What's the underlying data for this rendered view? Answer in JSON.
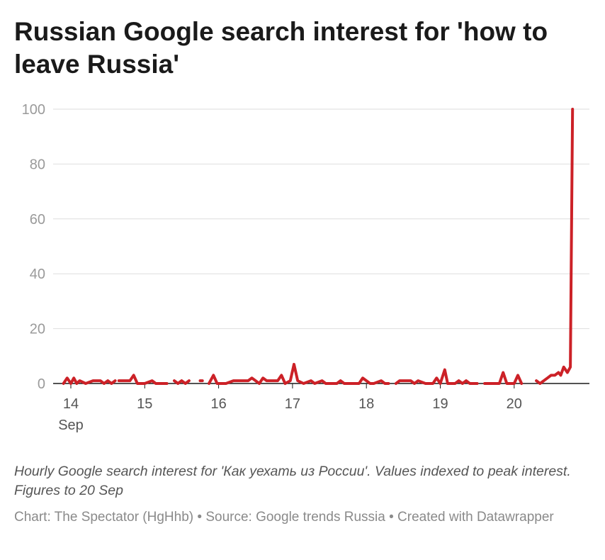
{
  "header": {
    "title": "Russian Google search interest for 'how to leave Russia'"
  },
  "footer": {
    "description": "Hourly Google search interest for 'Как уехать из России'. Values indexed to peak interest. Figures to 20 Sep",
    "credit_chart": "Chart: The Spectator (HgHhb)",
    "credit_source": "Source: Google trends Russia",
    "credit_tool": "Created with Datawrapper",
    "separator": " • "
  },
  "chart_data": {
    "type": "line",
    "title": "Russian Google search interest for 'how to leave Russia'",
    "xlabel": "",
    "ylabel": "",
    "ylim": [
      0,
      100
    ],
    "xlim": [
      14,
      20.85
    ],
    "y_ticks": [
      0,
      20,
      40,
      60,
      80,
      100
    ],
    "x_ticks": [
      {
        "value": 14,
        "label": "14",
        "sublabel": "Sep"
      },
      {
        "value": 15,
        "label": "15"
      },
      {
        "value": 16,
        "label": "16"
      },
      {
        "value": 17,
        "label": "17"
      },
      {
        "value": 18,
        "label": "18"
      },
      {
        "value": 19,
        "label": "19"
      },
      {
        "value": 20,
        "label": "20"
      }
    ],
    "grid": true,
    "color": "#cc2127",
    "series": [
      {
        "segments": [
          [
            [
              13.9,
              0
            ],
            [
              13.95,
              2
            ],
            [
              14.0,
              0
            ],
            [
              14.04,
              2
            ],
            [
              14.08,
              0
            ],
            [
              14.12,
              1
            ],
            [
              14.2,
              0
            ],
            [
              14.3,
              1
            ],
            [
              14.4,
              1
            ],
            [
              14.45,
              0
            ],
            [
              14.5,
              1
            ],
            [
              14.55,
              0
            ],
            [
              14.6,
              1
            ]
          ],
          [
            [
              14.65,
              1
            ],
            [
              14.8,
              1
            ],
            [
              14.85,
              3
            ],
            [
              14.9,
              0
            ],
            [
              15.0,
              0
            ],
            [
              15.1,
              1
            ],
            [
              15.15,
              0
            ],
            [
              15.3,
              0
            ]
          ],
          [
            [
              15.4,
              1
            ],
            [
              15.45,
              0
            ],
            [
              15.5,
              1
            ],
            [
              15.55,
              0
            ],
            [
              15.6,
              1
            ]
          ],
          [
            [
              15.75,
              1
            ],
            [
              15.78,
              1
            ]
          ],
          [
            [
              15.87,
              0
            ],
            [
              15.93,
              3
            ],
            [
              15.98,
              0
            ],
            [
              16.1,
              0
            ],
            [
              16.2,
              1
            ],
            [
              16.4,
              1
            ],
            [
              16.45,
              2
            ],
            [
              16.5,
              1
            ],
            [
              16.55,
              0
            ],
            [
              16.6,
              2
            ],
            [
              16.65,
              1
            ],
            [
              16.8,
              1
            ],
            [
              16.85,
              3
            ],
            [
              16.9,
              0
            ],
            [
              16.97,
              1
            ],
            [
              17.02,
              7
            ],
            [
              17.07,
              1
            ],
            [
              17.15,
              0
            ],
            [
              17.25,
              1
            ],
            [
              17.3,
              0
            ],
            [
              17.4,
              1
            ],
            [
              17.45,
              0
            ],
            [
              17.6,
              0
            ],
            [
              17.65,
              1
            ],
            [
              17.7,
              0
            ],
            [
              17.9,
              0
            ],
            [
              17.95,
              2
            ],
            [
              18.0,
              1
            ],
            [
              18.05,
              0
            ],
            [
              18.1,
              0
            ],
            [
              18.2,
              1
            ],
            [
              18.25,
              0
            ],
            [
              18.3,
              0
            ]
          ],
          [
            [
              18.4,
              0
            ],
            [
              18.45,
              1
            ],
            [
              18.6,
              1
            ],
            [
              18.65,
              0
            ],
            [
              18.7,
              1
            ],
            [
              18.8,
              0
            ],
            [
              18.9,
              0
            ],
            [
              18.95,
              2
            ],
            [
              19.0,
              0
            ],
            [
              19.06,
              5
            ],
            [
              19.1,
              0
            ],
            [
              19.2,
              0
            ],
            [
              19.25,
              1
            ],
            [
              19.3,
              0
            ],
            [
              19.35,
              1
            ],
            [
              19.4,
              0
            ],
            [
              19.5,
              0
            ]
          ],
          [
            [
              19.6,
              0
            ],
            [
              19.7,
              0
            ],
            [
              19.8,
              0
            ],
            [
              19.85,
              4
            ],
            [
              19.9,
              0
            ],
            [
              20.0,
              0
            ],
            [
              20.05,
              3
            ],
            [
              20.1,
              0
            ]
          ],
          [
            [
              20.3,
              1
            ],
            [
              20.35,
              0
            ],
            [
              20.45,
              2
            ],
            [
              20.5,
              3
            ],
            [
              20.55,
              3
            ],
            [
              20.6,
              4
            ],
            [
              20.63,
              3
            ],
            [
              20.67,
              6
            ],
            [
              20.72,
              4
            ],
            [
              20.76,
              6
            ],
            [
              20.79,
              100
            ]
          ]
        ]
      }
    ]
  }
}
